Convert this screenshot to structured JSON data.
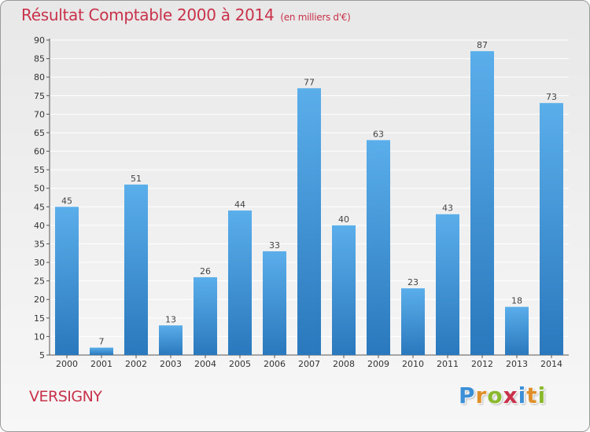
{
  "chart_data": {
    "type": "bar",
    "title": "Résultat Comptable 2000 à 2014",
    "subtitle": "(en milliers d'€)",
    "xlabel": "",
    "ylabel": "",
    "categories": [
      "2000",
      "2001",
      "2002",
      "2003",
      "2004",
      "2005",
      "2006",
      "2007",
      "2008",
      "2009",
      "2010",
      "2011",
      "2012",
      "2013",
      "2014"
    ],
    "values": [
      45,
      7,
      51,
      13,
      26,
      44,
      33,
      77,
      40,
      63,
      23,
      43,
      87,
      18,
      73
    ],
    "ylim": [
      5,
      90
    ],
    "yticks": [
      5,
      10,
      15,
      20,
      25,
      30,
      35,
      40,
      45,
      50,
      55,
      60,
      65,
      70,
      75,
      80,
      85,
      90
    ],
    "grid": true,
    "bar_color": "#3a8fd6",
    "legend": "none"
  },
  "place_name": "VERSIGNY",
  "logo": {
    "letters": [
      "P",
      "r",
      "o",
      "x",
      "i",
      "t",
      "i"
    ],
    "colors": [
      "#3a8fd6",
      "#e0902a",
      "#8ab92d",
      "#c8324a",
      "#3a8fd6",
      "#e0902a",
      "#8ab92d"
    ]
  },
  "colors": {
    "title": "#c8324a",
    "grid": "#ffffff",
    "axis": "#555555"
  }
}
